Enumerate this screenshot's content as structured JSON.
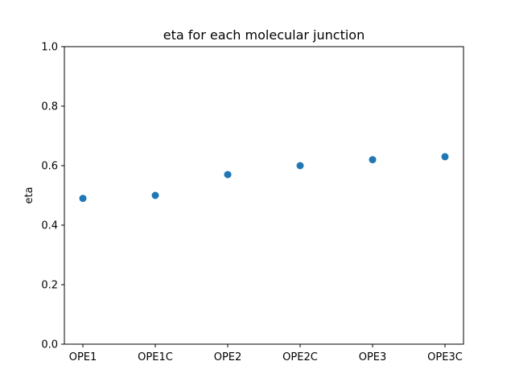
{
  "chart_data": {
    "type": "scatter",
    "title": "eta for each molecular junction",
    "xlabel": "",
    "ylabel": "eta",
    "categories": [
      "OPE1",
      "OPE1C",
      "OPE2",
      "OPE2C",
      "OPE3",
      "OPE3C"
    ],
    "series": [
      {
        "values": [
          0.49,
          0.5,
          0.57,
          0.6,
          0.62,
          0.63
        ]
      }
    ],
    "ylim": [
      0.0,
      1.0
    ],
    "yticks": [
      "0.0",
      "0.2",
      "0.4",
      "0.6",
      "0.8",
      "1.0"
    ],
    "grid": false,
    "marker_color": "#1f77b4"
  }
}
